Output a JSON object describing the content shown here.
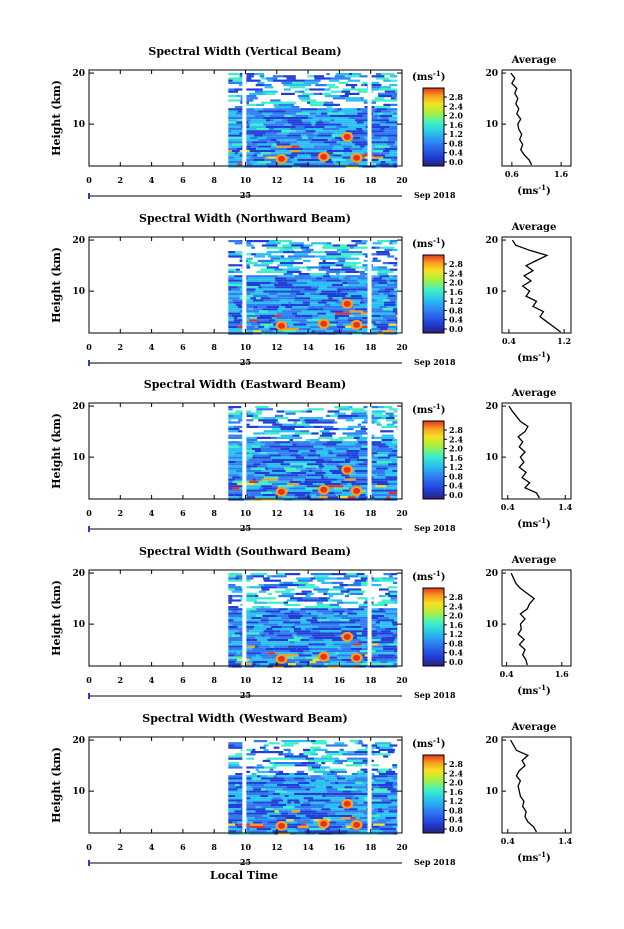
{
  "chart_data": [
    {
      "type": "heatmap",
      "title": "Spectral Width (Vertical Beam)",
      "ylabel": "Height (km)",
      "yticks": [
        "20",
        "10"
      ],
      "ylim": [
        1.8,
        20.6
      ],
      "xticks": [
        "0",
        "2",
        "4",
        "6",
        "8",
        "10",
        "12",
        "14",
        "16",
        "18",
        "20"
      ],
      "xlim": [
        0,
        20
      ],
      "date_day": "25",
      "date_month": "Sep 2018",
      "colorbar": {
        "unit": "(ms",
        "unit_sup": "-1",
        "unit_close": ")",
        "ticks": [
          "2.8",
          "2.4",
          "2.0",
          "1.6",
          "1.2",
          "0.8",
          "0.4",
          "0.0"
        ]
      },
      "average": {
        "title": "Average",
        "yticks": [
          "20",
          "10"
        ],
        "xticks": [
          "0.6",
          "1.6"
        ],
        "xlim": [
          0.4,
          1.8
        ],
        "xlabel": "(ms",
        "xlabel_sup": "-1",
        "xlabel_close": ")",
        "profile": [
          {
            "h": 2,
            "v": 1.0
          },
          {
            "h": 3,
            "v": 0.95
          },
          {
            "h": 4,
            "v": 0.85
          },
          {
            "h": 5,
            "v": 0.78
          },
          {
            "h": 6,
            "v": 0.82
          },
          {
            "h": 7,
            "v": 0.76
          },
          {
            "h": 8,
            "v": 0.8
          },
          {
            "h": 9,
            "v": 0.74
          },
          {
            "h": 10,
            "v": 0.72
          },
          {
            "h": 11,
            "v": 0.78
          },
          {
            "h": 12,
            "v": 0.7
          },
          {
            "h": 13,
            "v": 0.74
          },
          {
            "h": 14,
            "v": 0.68
          },
          {
            "h": 15,
            "v": 0.72
          },
          {
            "h": 16,
            "v": 0.66
          },
          {
            "h": 17,
            "v": 0.7
          },
          {
            "h": 18,
            "v": 0.6
          },
          {
            "h": 19,
            "v": 0.66
          },
          {
            "h": 20,
            "v": 0.58
          }
        ]
      }
    },
    {
      "type": "heatmap",
      "title": "Spectral Width (Northward Beam)",
      "ylabel": "Height (km)",
      "yticks": [
        "20",
        "10"
      ],
      "ylim": [
        1.8,
        20.6
      ],
      "xticks": [
        "0",
        "2",
        "4",
        "6",
        "8",
        "10",
        "12",
        "14",
        "16",
        "18",
        "20"
      ],
      "xlim": [
        0,
        20
      ],
      "date_day": "25",
      "date_month": "Sep 2018",
      "colorbar": {
        "unit": "(ms",
        "unit_sup": "-1",
        "unit_close": ")",
        "ticks": [
          "2.8",
          "2.4",
          "2.0",
          "1.6",
          "1.2",
          "0.8",
          "0.4",
          "0.0"
        ]
      },
      "average": {
        "title": "Average",
        "yticks": [
          "20",
          "10"
        ],
        "xticks": [
          "0.4",
          "1.2"
        ],
        "xlim": [
          0.3,
          1.3
        ],
        "xlabel": "(ms",
        "xlabel_sup": "-1",
        "xlabel_close": ")",
        "profile": [
          {
            "h": 2,
            "v": 1.15
          },
          {
            "h": 3,
            "v": 1.05
          },
          {
            "h": 4,
            "v": 0.95
          },
          {
            "h": 5,
            "v": 0.85
          },
          {
            "h": 6,
            "v": 0.9
          },
          {
            "h": 7,
            "v": 0.75
          },
          {
            "h": 8,
            "v": 0.8
          },
          {
            "h": 9,
            "v": 0.65
          },
          {
            "h": 10,
            "v": 0.7
          },
          {
            "h": 11,
            "v": 0.6
          },
          {
            "h": 12,
            "v": 0.72
          },
          {
            "h": 13,
            "v": 0.62
          },
          {
            "h": 14,
            "v": 0.75
          },
          {
            "h": 15,
            "v": 0.65
          },
          {
            "h": 16,
            "v": 0.8
          },
          {
            "h": 17,
            "v": 0.95
          },
          {
            "h": 18,
            "v": 0.7
          },
          {
            "h": 19,
            "v": 0.5
          },
          {
            "h": 20,
            "v": 0.45
          }
        ]
      }
    },
    {
      "type": "heatmap",
      "title": "Spectral Width (Eastward Beam)",
      "ylabel": "Height (km)",
      "yticks": [
        "20",
        "10"
      ],
      "ylim": [
        1.8,
        20.6
      ],
      "xticks": [
        "0",
        "2",
        "4",
        "6",
        "8",
        "10",
        "12",
        "14",
        "16",
        "18",
        "20"
      ],
      "xlim": [
        0,
        20
      ],
      "date_day": "25",
      "date_month": "Sep 2018",
      "colorbar": {
        "unit": "(ms",
        "unit_sup": "-1",
        "unit_close": ")",
        "ticks": [
          "2.8",
          "2.4",
          "2.0",
          "1.6",
          "1.2",
          "0.8",
          "0.4",
          "0.0"
        ]
      },
      "average": {
        "title": "Average",
        "yticks": [
          "20",
          "10"
        ],
        "xticks": [
          "0.4",
          "1.4"
        ],
        "xlim": [
          0.3,
          1.5
        ],
        "xlabel": "(ms",
        "xlabel_sup": "-1",
        "xlabel_close": ")",
        "profile": [
          {
            "h": 2,
            "v": 0.95
          },
          {
            "h": 3,
            "v": 0.9
          },
          {
            "h": 4,
            "v": 0.7
          },
          {
            "h": 5,
            "v": 0.78
          },
          {
            "h": 6,
            "v": 0.65
          },
          {
            "h": 7,
            "v": 0.72
          },
          {
            "h": 8,
            "v": 0.6
          },
          {
            "h": 9,
            "v": 0.68
          },
          {
            "h": 10,
            "v": 0.62
          },
          {
            "h": 11,
            "v": 0.7
          },
          {
            "h": 12,
            "v": 0.6
          },
          {
            "h": 13,
            "v": 0.66
          },
          {
            "h": 14,
            "v": 0.58
          },
          {
            "h": 15,
            "v": 0.7
          },
          {
            "h": 16,
            "v": 0.75
          },
          {
            "h": 17,
            "v": 0.62
          },
          {
            "h": 18,
            "v": 0.55
          },
          {
            "h": 19,
            "v": 0.48
          },
          {
            "h": 20,
            "v": 0.42
          }
        ]
      }
    },
    {
      "type": "heatmap",
      "title": "Spectral Width (Southward Beam)",
      "ylabel": "Height (km)",
      "yticks": [
        "20",
        "10"
      ],
      "ylim": [
        1.8,
        20.6
      ],
      "xticks": [
        "0",
        "2",
        "4",
        "6",
        "8",
        "10",
        "12",
        "14",
        "16",
        "18",
        "20"
      ],
      "xlim": [
        0,
        20
      ],
      "date_day": "25",
      "date_month": "Sep 2018",
      "colorbar": {
        "unit": "(ms",
        "unit_sup": "-1",
        "unit_close": ")",
        "ticks": [
          "2.8",
          "2.4",
          "2.0",
          "1.6",
          "1.2",
          "0.8",
          "0.4",
          "0.0"
        ]
      },
      "average": {
        "title": "Average",
        "yticks": [
          "20",
          "10"
        ],
        "xticks": [
          "0.4",
          "1.6"
        ],
        "xlim": [
          0.3,
          1.8
        ],
        "xlabel": "(ms",
        "xlabel_sup": "-1",
        "xlabel_close": ")",
        "profile": [
          {
            "h": 2,
            "v": 0.85
          },
          {
            "h": 3,
            "v": 0.82
          },
          {
            "h": 4,
            "v": 0.75
          },
          {
            "h": 5,
            "v": 0.8
          },
          {
            "h": 6,
            "v": 0.68
          },
          {
            "h": 7,
            "v": 0.78
          },
          {
            "h": 8,
            "v": 0.65
          },
          {
            "h": 9,
            "v": 0.72
          },
          {
            "h": 10,
            "v": 0.7
          },
          {
            "h": 11,
            "v": 0.8
          },
          {
            "h": 12,
            "v": 0.7
          },
          {
            "h": 13,
            "v": 0.85
          },
          {
            "h": 14,
            "v": 0.9
          },
          {
            "h": 15,
            "v": 1.0
          },
          {
            "h": 16,
            "v": 0.85
          },
          {
            "h": 17,
            "v": 0.7
          },
          {
            "h": 18,
            "v": 0.6
          },
          {
            "h": 19,
            "v": 0.55
          },
          {
            "h": 20,
            "v": 0.5
          }
        ]
      }
    },
    {
      "type": "heatmap",
      "title": "Spectral Width (Westward Beam)",
      "ylabel": "Height (km)",
      "yticks": [
        "20",
        "10"
      ],
      "ylim": [
        1.8,
        20.6
      ],
      "xticks": [
        "0",
        "2",
        "4",
        "6",
        "8",
        "10",
        "12",
        "14",
        "16",
        "18",
        "20"
      ],
      "xlim": [
        0,
        20
      ],
      "date_day": "25",
      "date_month": "Sep 2018",
      "colorbar": {
        "unit": "(ms",
        "unit_sup": "-1",
        "unit_close": ")",
        "ticks": [
          "2.8",
          "2.4",
          "2.0",
          "1.6",
          "1.2",
          "0.8",
          "0.4",
          "0.0"
        ]
      },
      "average": {
        "title": "Average",
        "yticks": [
          "20",
          "10"
        ],
        "xticks": [
          "0.4",
          "1.4"
        ],
        "xlim": [
          0.3,
          1.5
        ],
        "xlabel": "(ms",
        "xlabel_sup": "-1",
        "xlabel_close": ")",
        "profile": [
          {
            "h": 2,
            "v": 0.9
          },
          {
            "h": 3,
            "v": 0.85
          },
          {
            "h": 4,
            "v": 0.75
          },
          {
            "h": 5,
            "v": 0.7
          },
          {
            "h": 6,
            "v": 0.72
          },
          {
            "h": 7,
            "v": 0.66
          },
          {
            "h": 8,
            "v": 0.68
          },
          {
            "h": 9,
            "v": 0.62
          },
          {
            "h": 10,
            "v": 0.6
          },
          {
            "h": 11,
            "v": 0.58
          },
          {
            "h": 12,
            "v": 0.62
          },
          {
            "h": 13,
            "v": 0.55
          },
          {
            "h": 14,
            "v": 0.6
          },
          {
            "h": 15,
            "v": 0.7
          },
          {
            "h": 16,
            "v": 0.65
          },
          {
            "h": 17,
            "v": 0.75
          },
          {
            "h": 18,
            "v": 0.55
          },
          {
            "h": 19,
            "v": 0.5
          },
          {
            "h": 20,
            "v": 0.45
          }
        ]
      }
    }
  ],
  "footer": {
    "xlabel": "Local Time"
  },
  "colors": {
    "scale": [
      "#2a1f7a",
      "#1f3fd8",
      "#2f7cf2",
      "#28c0f0",
      "#3ef0c8",
      "#a8f040",
      "#f6e020",
      "#f6a020",
      "#e83020"
    ]
  }
}
